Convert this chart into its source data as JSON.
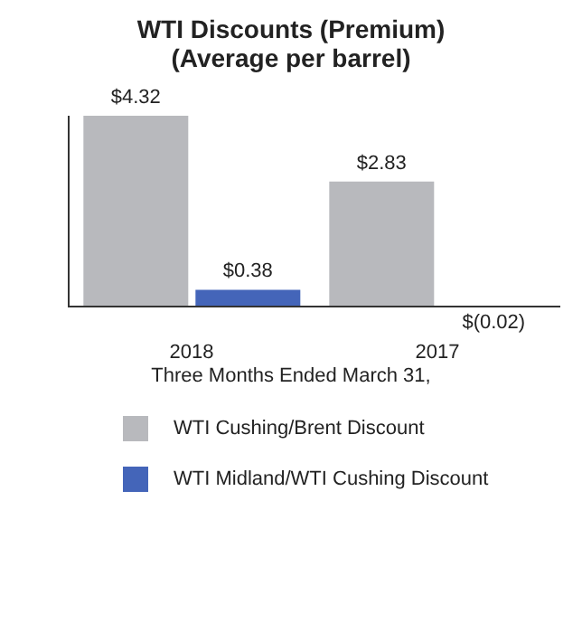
{
  "chart_data": {
    "type": "bar",
    "title": "WTI Discounts (Premium)",
    "subtitle": "(Average per barrel)",
    "xlabel": "Three Months Ended March 31,",
    "categories": [
      "2018",
      "2017"
    ],
    "series": [
      {
        "name": "WTI Cushing/Brent Discount",
        "color": "#b8b9bd",
        "values": [
          4.32,
          2.83
        ],
        "value_labels": [
          "$4.32",
          "$2.83"
        ]
      },
      {
        "name": "WTI Midland/WTI Cushing Discount",
        "color": "#4465b9",
        "values": [
          0.38,
          -0.02
        ],
        "value_labels": [
          "$0.38",
          "$(0.02)"
        ]
      }
    ],
    "legend": "bottom",
    "tick_labels": "x"
  }
}
